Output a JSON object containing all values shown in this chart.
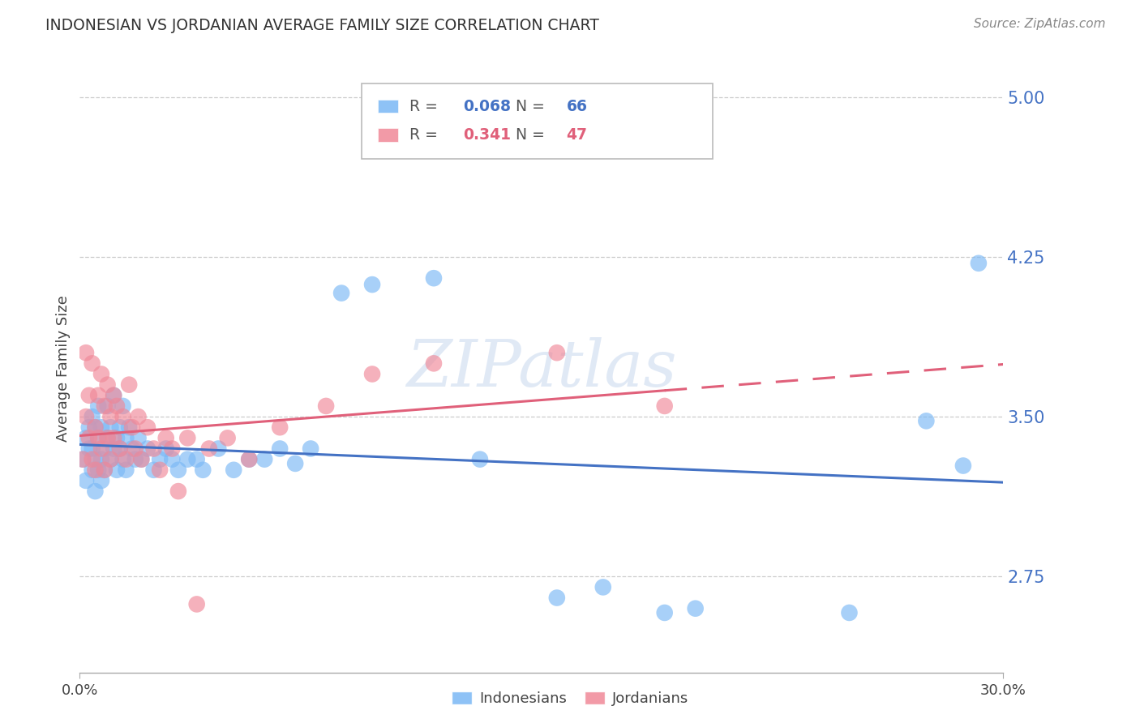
{
  "title": "INDONESIAN VS JORDANIAN AVERAGE FAMILY SIZE CORRELATION CHART",
  "source": "Source: ZipAtlas.com",
  "ylabel": "Average Family Size",
  "yticks": [
    2.75,
    3.5,
    4.25,
    5.0
  ],
  "xlim": [
    0.0,
    0.3
  ],
  "ylim": [
    2.3,
    5.15
  ],
  "watermark": "ZIPatlas",
  "blue_color": "#7ab8f5",
  "pink_color": "#f08898",
  "blue_line_color": "#4472c4",
  "pink_line_color": "#e0607a",
  "ytick_color": "#4472c4",
  "title_color": "#333333",
  "source_color": "#888888",
  "grid_color": "#cccccc",
  "indo_R": "0.068",
  "indo_N": "66",
  "jord_R": "0.341",
  "jord_N": "47",
  "indo_x": [
    0.001,
    0.002,
    0.002,
    0.003,
    0.003,
    0.004,
    0.004,
    0.004,
    0.005,
    0.005,
    0.005,
    0.006,
    0.006,
    0.006,
    0.007,
    0.007,
    0.007,
    0.008,
    0.008,
    0.009,
    0.009,
    0.01,
    0.01,
    0.011,
    0.011,
    0.012,
    0.012,
    0.013,
    0.013,
    0.014,
    0.014,
    0.015,
    0.015,
    0.016,
    0.017,
    0.018,
    0.019,
    0.02,
    0.022,
    0.024,
    0.026,
    0.028,
    0.03,
    0.032,
    0.035,
    0.038,
    0.04,
    0.045,
    0.05,
    0.055,
    0.06,
    0.065,
    0.07,
    0.075,
    0.085,
    0.095,
    0.115,
    0.13,
    0.155,
    0.17,
    0.19,
    0.2,
    0.25,
    0.275,
    0.287,
    0.292
  ],
  "indo_y": [
    3.3,
    3.4,
    3.2,
    3.35,
    3.45,
    3.25,
    3.35,
    3.5,
    3.3,
    3.15,
    3.45,
    3.25,
    3.4,
    3.55,
    3.3,
    3.2,
    3.45,
    3.35,
    3.25,
    3.4,
    3.55,
    3.3,
    3.45,
    3.35,
    3.6,
    3.4,
    3.25,
    3.35,
    3.45,
    3.3,
    3.55,
    3.4,
    3.25,
    3.45,
    3.35,
    3.3,
    3.4,
    3.3,
    3.35,
    3.25,
    3.3,
    3.35,
    3.3,
    3.25,
    3.3,
    3.3,
    3.25,
    3.35,
    3.25,
    3.3,
    3.3,
    3.35,
    3.28,
    3.35,
    4.08,
    4.12,
    4.15,
    3.3,
    2.65,
    2.7,
    2.58,
    2.6,
    2.58,
    3.48,
    3.27,
    4.22
  ],
  "jord_x": [
    0.001,
    0.002,
    0.002,
    0.003,
    0.003,
    0.004,
    0.004,
    0.005,
    0.005,
    0.006,
    0.006,
    0.007,
    0.007,
    0.008,
    0.008,
    0.009,
    0.009,
    0.01,
    0.01,
    0.011,
    0.011,
    0.012,
    0.013,
    0.014,
    0.015,
    0.016,
    0.017,
    0.018,
    0.019,
    0.02,
    0.022,
    0.024,
    0.026,
    0.028,
    0.03,
    0.032,
    0.035,
    0.038,
    0.042,
    0.048,
    0.055,
    0.065,
    0.08,
    0.095,
    0.115,
    0.155,
    0.19
  ],
  "jord_y": [
    3.3,
    3.5,
    3.8,
    3.4,
    3.6,
    3.3,
    3.75,
    3.45,
    3.25,
    3.6,
    3.4,
    3.7,
    3.35,
    3.55,
    3.25,
    3.65,
    3.4,
    3.5,
    3.3,
    3.6,
    3.4,
    3.55,
    3.35,
    3.5,
    3.3,
    3.65,
    3.45,
    3.35,
    3.5,
    3.3,
    3.45,
    3.35,
    3.25,
    3.4,
    3.35,
    3.15,
    3.4,
    2.62,
    3.35,
    3.4,
    3.3,
    3.45,
    3.55,
    3.7,
    3.75,
    3.8,
    3.55
  ]
}
